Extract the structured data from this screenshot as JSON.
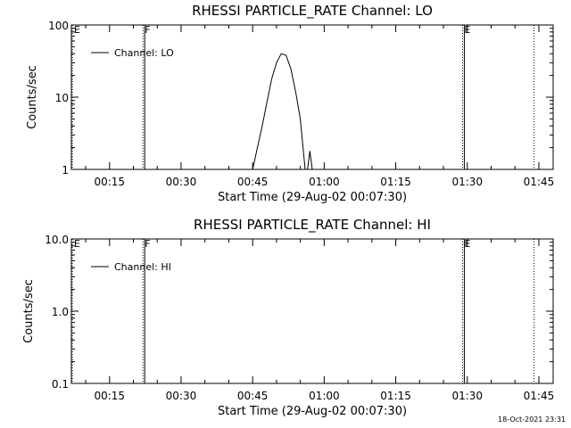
{
  "footer_timestamp": "18-Oct-2021 23:31",
  "chart_data": [
    {
      "type": "line",
      "title": "RHESSI PARTICLE_RATE Channel: LO",
      "xlabel": "Start Time (29-Aug-02 00:07:30)",
      "ylabel": "Counts/sec",
      "y_scale": "log",
      "ylim": [
        1,
        100
      ],
      "y_ticks": [
        {
          "v": 1,
          "label": "1"
        },
        {
          "v": 10,
          "label": "10"
        },
        {
          "v": 100,
          "label": "100"
        }
      ],
      "xlim": [
        "00:07",
        "01:48"
      ],
      "x_ticks": [
        "00:15",
        "00:30",
        "00:45",
        "01:00",
        "01:15",
        "01:30",
        "01:45"
      ],
      "legend": {
        "label": "Channel: LO",
        "placement": "top-left"
      },
      "grid": false,
      "flags": [
        {
          "label": "E",
          "time": "00:07",
          "style": "dotted"
        },
        {
          "label": "F",
          "time": "00:22",
          "style": "dotted"
        },
        {
          "label": "",
          "time": "00:22",
          "style": "solid"
        },
        {
          "label": "E",
          "time": "01:29",
          "style": "dotted"
        },
        {
          "label": "",
          "time": "01:29",
          "style": "solid"
        },
        {
          "label": "",
          "time": "01:44",
          "style": "dotted"
        }
      ],
      "series": [
        {
          "x": [
            "00:45",
            "00:46",
            "00:47",
            "00:48",
            "00:49",
            "00:50",
            "00:51",
            "00:52",
            "00:53",
            "00:54",
            "00:55",
            "00:56"
          ],
          "y": [
            1.0,
            2.0,
            4.0,
            8.5,
            18,
            30,
            40,
            38,
            25,
            12,
            5,
            1.0
          ]
        },
        {
          "x": [
            "00:56.5",
            "00:57",
            "00:57.5"
          ],
          "y": [
            1.0,
            1.8,
            1.0
          ]
        }
      ]
    },
    {
      "type": "line",
      "title": "RHESSI PARTICLE_RATE Channel: HI",
      "xlabel": "Start Time (29-Aug-02 00:07:30)",
      "ylabel": "Counts/sec",
      "y_scale": "log",
      "ylim": [
        0.1,
        10
      ],
      "y_ticks": [
        {
          "v": 0.1,
          "label": "0.1"
        },
        {
          "v": 1,
          "label": "1.0"
        },
        {
          "v": 10,
          "label": "10.0"
        }
      ],
      "xlim": [
        "00:07",
        "01:48"
      ],
      "x_ticks": [
        "00:15",
        "00:30",
        "00:45",
        "01:00",
        "01:15",
        "01:30",
        "01:45"
      ],
      "legend": {
        "label": "Channel: HI",
        "placement": "top-left"
      },
      "grid": false,
      "flags": [
        {
          "label": "E",
          "time": "00:07",
          "style": "dotted"
        },
        {
          "label": "F",
          "time": "00:22",
          "style": "dotted"
        },
        {
          "label": "",
          "time": "00:22",
          "style": "solid"
        },
        {
          "label": "E",
          "time": "01:29",
          "style": "dotted"
        },
        {
          "label": "",
          "time": "01:29",
          "style": "solid"
        },
        {
          "label": "",
          "time": "01:44",
          "style": "dotted"
        }
      ],
      "series": []
    }
  ]
}
